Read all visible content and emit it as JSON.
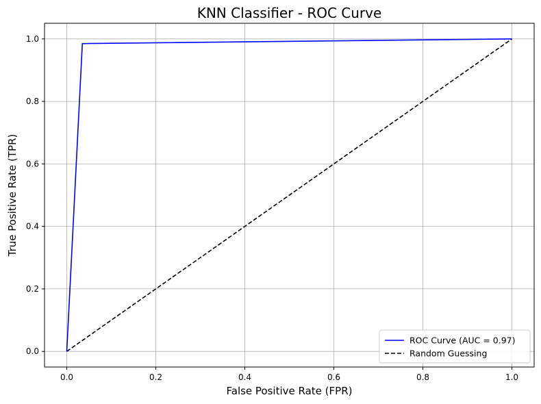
{
  "chart_data": {
    "type": "line",
    "title": "KNN Classifier - ROC Curve",
    "xlabel": "False Positive Rate (FPR)",
    "ylabel": "True Positive Rate (TPR)",
    "xlim": [
      -0.05,
      1.05
    ],
    "ylim": [
      -0.05,
      1.05
    ],
    "xticks": [
      0.0,
      0.2,
      0.4,
      0.6,
      0.8,
      1.0
    ],
    "yticks": [
      0.0,
      0.2,
      0.4,
      0.6,
      0.8,
      1.0
    ],
    "xtick_labels": [
      "0.0",
      "0.2",
      "0.4",
      "0.6",
      "0.8",
      "1.0"
    ],
    "ytick_labels": [
      "0.0",
      "0.2",
      "0.4",
      "0.6",
      "0.8",
      "1.0"
    ],
    "grid": true,
    "legend_position": "bottom-right",
    "series": [
      {
        "name": "ROC Curve (AUC = 0.97)",
        "color": "#0000ff",
        "style": "solid",
        "x": [
          0.0,
          0.035,
          1.0
        ],
        "y": [
          0.0,
          0.985,
          1.0
        ]
      },
      {
        "name": "Random Guessing",
        "color": "#000000",
        "style": "dashed",
        "x": [
          0.0,
          1.0
        ],
        "y": [
          0.0,
          1.0
        ]
      }
    ]
  }
}
